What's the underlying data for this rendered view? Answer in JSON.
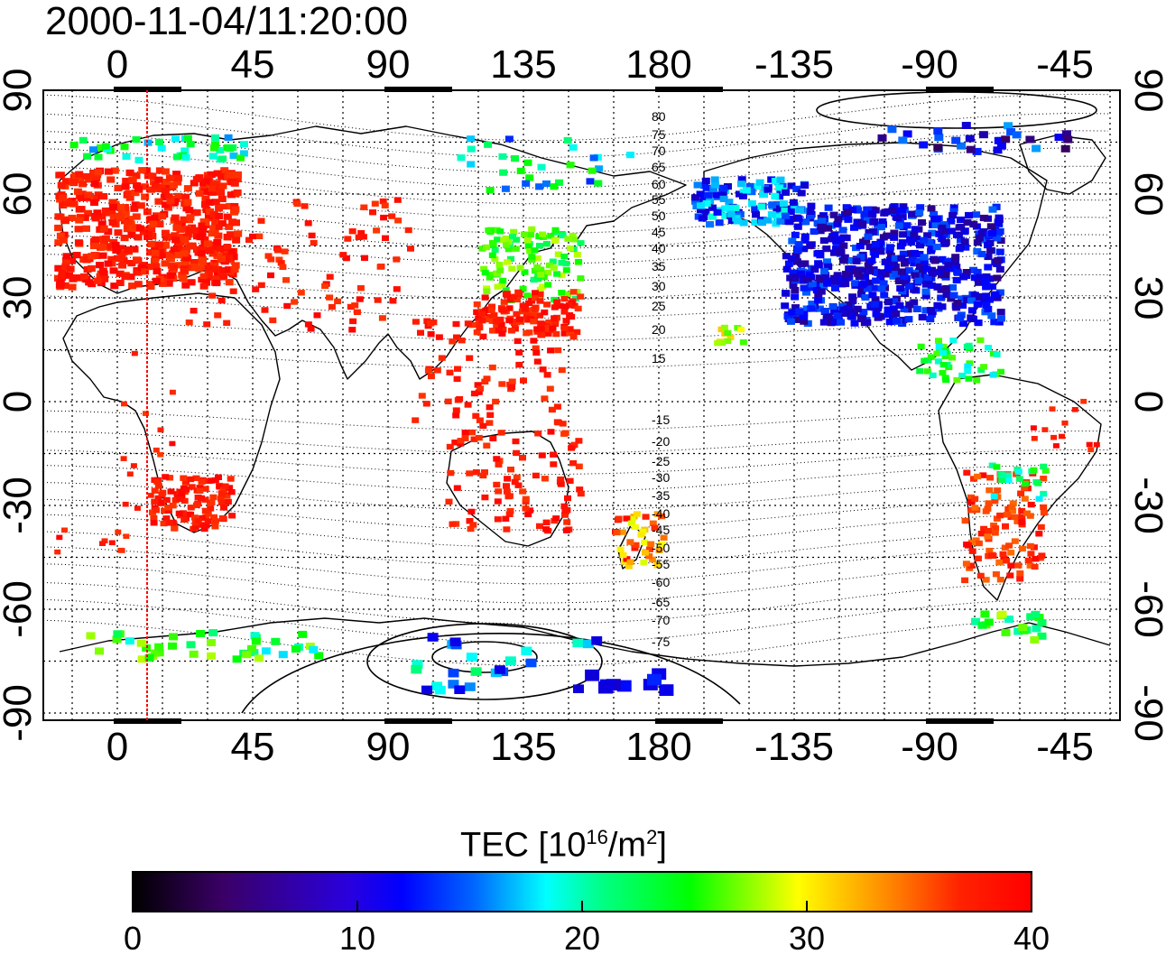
{
  "timestamp": "2000-11-04/11:20:00",
  "map": {
    "lon_ticks_top": [
      "0",
      "45",
      "90",
      "135",
      "180",
      "-135",
      "-90",
      "-45"
    ],
    "lon_ticks_bottom": [
      "0",
      "45",
      "90",
      "135",
      "180",
      "-135",
      "-90",
      "-45"
    ],
    "lat_ticks_left": [
      "90",
      "60",
      "30",
      "0",
      "-30",
      "-60",
      "-90"
    ],
    "lat_ticks_right": [
      "90",
      "60",
      "30",
      "0",
      "-30",
      "-60",
      "-90"
    ],
    "contour_labels": [
      "80",
      "75",
      "70",
      "65",
      "60",
      "55",
      "50",
      "45",
      "40",
      "35",
      "30",
      "25",
      "20",
      "15",
      "-15",
      "-20",
      "-25",
      "-30",
      "-35",
      "-40",
      "-45",
      "-50",
      "-55",
      "-60",
      "-65",
      "-70",
      "-75"
    ],
    "terminator_longitude": 10,
    "high_tec_color": "#ff1a1a",
    "low_tec_color": "#1c3cff"
  },
  "colorbar": {
    "title_main": "TEC  [10",
    "title_exp": "16",
    "title_unit": "/m",
    "title_unit_exp": "2",
    "title_end": "]",
    "ticks": [
      "0",
      "10",
      "20",
      "30",
      "40"
    ],
    "min": 0,
    "max": 40,
    "colors": [
      "#000000",
      "#5500aa",
      "#0000ff",
      "#00ffff",
      "#00ff00",
      "#ffff00",
      "#ff8800",
      "#ff0000"
    ]
  }
}
